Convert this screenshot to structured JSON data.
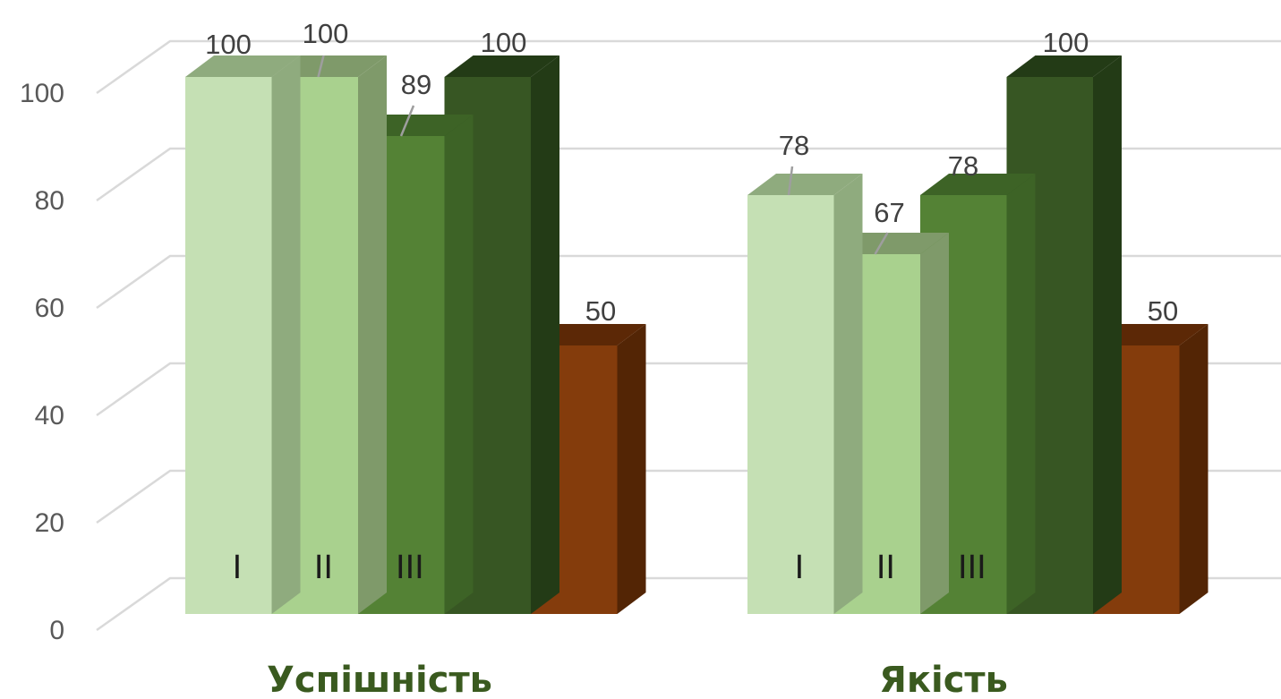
{
  "chart_data": {
    "type": "bar",
    "categories": [
      "Успішність",
      "Якість"
    ],
    "series": [
      {
        "values": [
          100,
          78
        ],
        "inner_label": "I",
        "color": "#c5e0b4",
        "top_color": "#8fab7e",
        "side_color": "#8fab7e"
      },
      {
        "values": [
          100,
          67
        ],
        "inner_label": "II",
        "color": "#a9d18e",
        "top_color": "#7f9a6a",
        "side_color": "#7f9a6a"
      },
      {
        "values": [
          89,
          78
        ],
        "inner_label": "III",
        "color": "#548235",
        "top_color": "#3d6326",
        "side_color": "#3d6326"
      },
      {
        "values": [
          100,
          100
        ],
        "inner_label": "",
        "color": "#375623",
        "top_color": "#233b16",
        "side_color": "#233b16"
      },
      {
        "values": [
          50,
          50
        ],
        "inner_label": "",
        "color": "#843c0c",
        "top_color": "#5c2806",
        "side_color": "#532505"
      }
    ],
    "data_labels": [
      [
        "100",
        "78"
      ],
      [
        "100",
        "67"
      ],
      [
        "89",
        "78"
      ],
      [
        "100",
        "100"
      ],
      [
        "50",
        "50"
      ]
    ],
    "yticks": [
      "0",
      "20",
      "40",
      "60",
      "80",
      "100"
    ],
    "ylim": [
      0,
      100
    ],
    "grid": true,
    "legend": "none"
  }
}
